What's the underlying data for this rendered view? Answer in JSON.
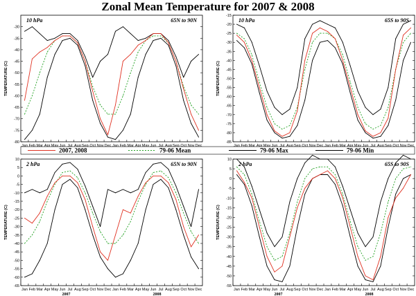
{
  "title": "Zonal Mean Temperature for 2007 & 2008",
  "months": [
    "Jan",
    "Feb",
    "Mar",
    "Apr",
    "May",
    "Jun",
    "Jul",
    "Aug",
    "Sep",
    "Oct",
    "Nov",
    "Dec",
    "Jan",
    "Feb",
    "Mar",
    "Apr",
    "May",
    "Jun",
    "Jul",
    "Aug",
    "Sep",
    "Oct",
    "Nov",
    "Dec"
  ],
  "years": [
    "2007",
    "2008"
  ],
  "legend": [
    {
      "label": "2007, 2008",
      "color": "#e03020",
      "dash": ""
    },
    {
      "label": "79-06 Mean",
      "color": "#20a020",
      "dash": "2,2"
    },
    {
      "label": "79-06 Max",
      "color": "#000000",
      "dash": ""
    },
    {
      "label": "79-06 Min",
      "color": "#000000",
      "dash": ""
    }
  ],
  "chart_data": [
    {
      "type": "line",
      "level": "10 hPa",
      "region": "65N to 90N",
      "ylabel": "TEMPERATURE (C)",
      "ylim": [
        -80,
        -25
      ],
      "yticks": [
        -30,
        -35,
        -40,
        -45,
        -50,
        -55,
        -60,
        -65,
        -70,
        -75,
        -80
      ],
      "x": [
        "Jan",
        "Feb",
        "Mar",
        "Apr",
        "May",
        "Jun",
        "Jul",
        "Aug",
        "Sep",
        "Oct",
        "Nov",
        "Dec",
        "Jan",
        "Feb",
        "Mar",
        "Apr",
        "May",
        "Jun",
        "Jul",
        "Aug",
        "Sep",
        "Oct",
        "Nov",
        "Dec"
      ],
      "series": [
        {
          "name": "2007, 2008",
          "values": [
            -62,
            -44,
            -41,
            -39,
            -36,
            -34,
            -34,
            -37,
            -45,
            -58,
            -70,
            -77,
            -64,
            -45,
            -42,
            -38,
            -36,
            -33,
            -33,
            -37,
            -45,
            -57,
            -68,
            -75
          ]
        },
        {
          "name": "79-06 Mean",
          "values": [
            -68,
            -60,
            -50,
            -41,
            -36,
            -34,
            -34,
            -37,
            -45,
            -56,
            -64,
            -68,
            -68,
            -60,
            -50,
            -41,
            -36,
            -34,
            -34,
            -37,
            -45,
            -56,
            -64,
            -68
          ]
        },
        {
          "name": "79-06 Max",
          "values": [
            -32,
            -30,
            -33,
            -36,
            -35,
            -33,
            -33,
            -36,
            -43,
            -52,
            -45,
            -42,
            -32,
            -30,
            -33,
            -36,
            -35,
            -33,
            -33,
            -36,
            -43,
            -52,
            -45,
            -42
          ]
        },
        {
          "name": "79-06 Min",
          "values": [
            -79,
            -75,
            -68,
            -52,
            -42,
            -36,
            -35,
            -38,
            -47,
            -62,
            -72,
            -78,
            -79,
            -75,
            -68,
            -52,
            -42,
            -36,
            -35,
            -38,
            -47,
            -62,
            -72,
            -78
          ]
        }
      ]
    },
    {
      "type": "line",
      "level": "10 hPa",
      "region": "65S to 90S",
      "ylabel": "TEMPERATURE (C)",
      "ylim": [
        -85,
        -15
      ],
      "yticks": [
        -15,
        -20,
        -25,
        -30,
        -35,
        -40,
        -45,
        -50,
        -55,
        -60,
        -65,
        -70,
        -75,
        -80,
        -85
      ],
      "x": [
        "Jan",
        "Feb",
        "Mar",
        "Apr",
        "May",
        "Jun",
        "Jul",
        "Aug",
        "Sep",
        "Oct",
        "Nov",
        "Dec",
        "Jan",
        "Feb",
        "Mar",
        "Apr",
        "May",
        "Jun",
        "Jul",
        "Aug",
        "Sep",
        "Oct",
        "Nov",
        "Dec"
      ],
      "series": [
        {
          "name": "2007, 2008",
          "values": [
            -26,
            -30,
            -40,
            -55,
            -70,
            -79,
            -82,
            -80,
            -68,
            -40,
            -25,
            -22,
            -24,
            -28,
            -40,
            -55,
            -70,
            -79,
            -82,
            -80,
            -72,
            -45,
            -26,
            -22
          ]
        },
        {
          "name": "79-06 Mean",
          "values": [
            -25,
            -28,
            -37,
            -52,
            -66,
            -75,
            -78,
            -76,
            -66,
            -45,
            -30,
            -25,
            -25,
            -28,
            -37,
            -52,
            -66,
            -75,
            -78,
            -76,
            -66,
            -45,
            -30,
            -25
          ]
        },
        {
          "name": "79-06 Max",
          "values": [
            -20,
            -22,
            -30,
            -43,
            -57,
            -66,
            -70,
            -67,
            -55,
            -28,
            -20,
            -18,
            -20,
            -22,
            -30,
            -43,
            -57,
            -66,
            -70,
            -67,
            -55,
            -28,
            -20,
            -18
          ]
        },
        {
          "name": "79-06 Min",
          "values": [
            -29,
            -33,
            -42,
            -58,
            -73,
            -80,
            -83,
            -82,
            -76,
            -62,
            -40,
            -30,
            -29,
            -33,
            -42,
            -58,
            -73,
            -80,
            -83,
            -82,
            -76,
            -62,
            -40,
            -30
          ]
        }
      ]
    },
    {
      "type": "line",
      "level": "2 hPa",
      "region": "65N to 90N",
      "ylabel": "TEMPERATURE (C)",
      "ylim": [
        -65,
        10
      ],
      "yticks": [
        10,
        5,
        0,
        -5,
        -10,
        -15,
        -20,
        -25,
        -30,
        -35,
        -40,
        -45,
        -50,
        -55,
        -60,
        -65
      ],
      "x": [
        "Jan",
        "Feb",
        "Mar",
        "Apr",
        "May",
        "Jun",
        "Jul",
        "Aug",
        "Sep",
        "Oct",
        "Nov",
        "Dec",
        "Jan",
        "Feb",
        "Mar",
        "Apr",
        "May",
        "Jun",
        "Jul",
        "Aug",
        "Sep",
        "Oct",
        "Nov",
        "Dec"
      ],
      "series": [
        {
          "name": "2007, 2008",
          "values": [
            -25,
            -28,
            -22,
            -12,
            -4,
            0,
            0,
            -4,
            -14,
            -30,
            -45,
            -50,
            -35,
            -20,
            -22,
            -12,
            -4,
            0,
            0,
            -4,
            -14,
            -30,
            -42,
            -35
          ]
        },
        {
          "name": "79-06 Mean",
          "values": [
            -40,
            -35,
            -27,
            -15,
            -5,
            2,
            3,
            -1,
            -10,
            -22,
            -33,
            -40,
            -40,
            -35,
            -27,
            -15,
            -5,
            2,
            3,
            -1,
            -10,
            -22,
            -33,
            -40
          ]
        },
        {
          "name": "79-06 Max",
          "values": [
            -10,
            -8,
            -10,
            -8,
            2,
            7,
            8,
            4,
            -6,
            -18,
            -30,
            -8,
            -10,
            -8,
            -10,
            -8,
            2,
            7,
            8,
            4,
            -6,
            -18,
            -30,
            -8
          ]
        },
        {
          "name": "79-06 Min",
          "values": [
            -60,
            -58,
            -50,
            -40,
            -20,
            -5,
            -2,
            -7,
            -20,
            -35,
            -48,
            -55,
            -60,
            -58,
            -50,
            -40,
            -20,
            -5,
            -2,
            -7,
            -20,
            -35,
            -48,
            -55
          ]
        }
      ]
    },
    {
      "type": "line",
      "level": "2 hPa",
      "region": "65S to 90S",
      "ylabel": "TEMPERATURE (C)",
      "ylim": [
        -55,
        10
      ],
      "yticks": [
        10,
        5,
        0,
        -5,
        -10,
        -15,
        -20,
        -25,
        -30,
        -35,
        -40,
        -45,
        -50,
        -55
      ],
      "x": [
        "Jan",
        "Feb",
        "Mar",
        "Apr",
        "May",
        "Jun",
        "Jul",
        "Aug",
        "Sep",
        "Oct",
        "Nov",
        "Dec",
        "Jan",
        "Feb",
        "Mar",
        "Apr",
        "May",
        "Jun",
        "Jul",
        "Aug",
        "Sep",
        "Oct",
        "Nov",
        "Dec"
      ],
      "series": [
        {
          "name": "2007, 2008",
          "values": [
            4,
            -2,
            -10,
            -25,
            -40,
            -48,
            -45,
            -30,
            -15,
            -5,
            0,
            2,
            4,
            0,
            -10,
            -25,
            -40,
            -50,
            -52,
            -40,
            -20,
            -10,
            -5,
            2
          ]
        },
        {
          "name": "79-06 Mean",
          "values": [
            6,
            2,
            -8,
            -22,
            -35,
            -42,
            -40,
            -28,
            -12,
            0,
            5,
            6,
            6,
            2,
            -8,
            -22,
            -35,
            -42,
            -40,
            -28,
            -12,
            0,
            5,
            6
          ]
        },
        {
          "name": "79-06 Max",
          "values": [
            10,
            6,
            -4,
            -16,
            -28,
            -35,
            -30,
            -12,
            0,
            8,
            12,
            10,
            10,
            6,
            -4,
            -16,
            -28,
            -35,
            -30,
            -12,
            0,
            8,
            12,
            10
          ]
        },
        {
          "name": "79-06 Min",
          "values": [
            2,
            -3,
            -14,
            -30,
            -45,
            -52,
            -53,
            -45,
            -25,
            -8,
            0,
            2,
            2,
            -3,
            -14,
            -30,
            -45,
            -52,
            -53,
            -45,
            -25,
            -8,
            0,
            2
          ]
        }
      ]
    }
  ]
}
